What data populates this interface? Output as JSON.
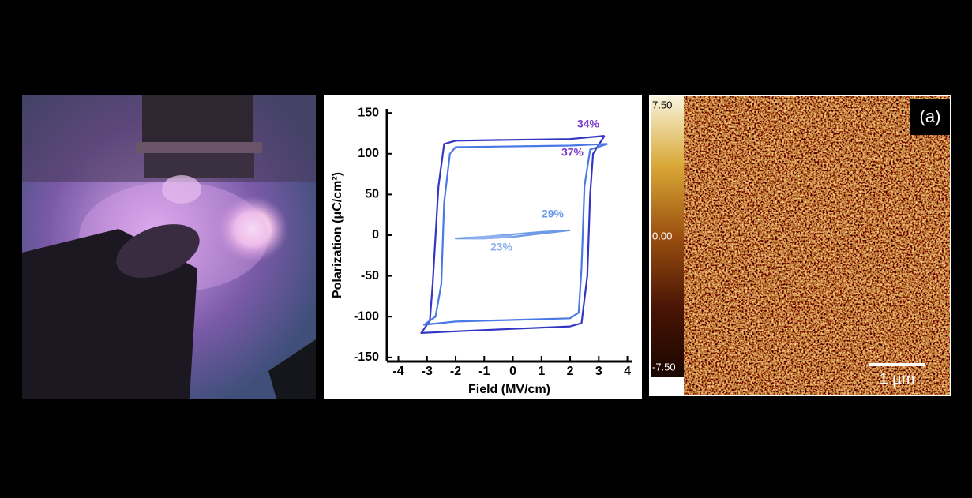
{
  "chart_data": {
    "type": "line",
    "xlabel": "Field (MV/cm)",
    "ylabel": "Polarization (μC/cm²)",
    "xlim": [
      -4.4,
      4.15
    ],
    "ylim": [
      -155,
      155
    ],
    "xticks": [
      -4,
      -3,
      -2,
      -1,
      0,
      1,
      2,
      3,
      4
    ],
    "yticks": [
      -150,
      -100,
      -50,
      0,
      50,
      100,
      150
    ],
    "series": [
      {
        "name": "34%",
        "color": "#3336c4",
        "x": [
          3.2,
          2,
          0,
          -2,
          -2.4,
          -2.6,
          -2.8,
          -2.9,
          -3.2,
          -2,
          0,
          2,
          2.4,
          2.6,
          2.7,
          2.8,
          3.2
        ],
        "values": [
          122,
          118,
          117,
          116,
          112,
          60,
          -60,
          -105,
          -120,
          -118,
          -115,
          -112,
          -108,
          -50,
          50,
          100,
          122
        ]
      },
      {
        "name": "37%",
        "color": "#4a78e6",
        "x": [
          3.3,
          2,
          0,
          -2,
          -2.2,
          -2.4,
          -2.5,
          -2.7,
          -3.1,
          -2,
          0,
          2,
          2.3,
          2.4,
          2.5,
          2.7,
          3.3
        ],
        "values": [
          112,
          110,
          109,
          108,
          100,
          40,
          -60,
          -100,
          -110,
          -106,
          -104,
          -102,
          -95,
          -40,
          60,
          105,
          112
        ]
      },
      {
        "name": "29%",
        "color": "#6d9be8",
        "x": [
          2,
          1,
          0,
          -1,
          -2,
          -1,
          0,
          1,
          2
        ],
        "values": [
          6,
          2,
          -2,
          -4,
          -4,
          -2,
          1,
          4,
          6
        ]
      },
      {
        "name": "23%",
        "color": "#8fb0ec",
        "x": [
          0,
          -0.5,
          -1,
          -1.6,
          -1,
          -0.5,
          0
        ],
        "values": [
          -1,
          -3,
          -4,
          -4,
          -2,
          -1,
          -1
        ]
      }
    ]
  },
  "afm_image": {
    "label": "(a)",
    "scale_bar": "1 µm",
    "colorbar_ticks": [
      {
        "value": 7.5,
        "label": "7.50"
      },
      {
        "value": 0,
        "label": "0.00"
      },
      {
        "value": -7.5,
        "label": "-7.50"
      }
    ]
  }
}
